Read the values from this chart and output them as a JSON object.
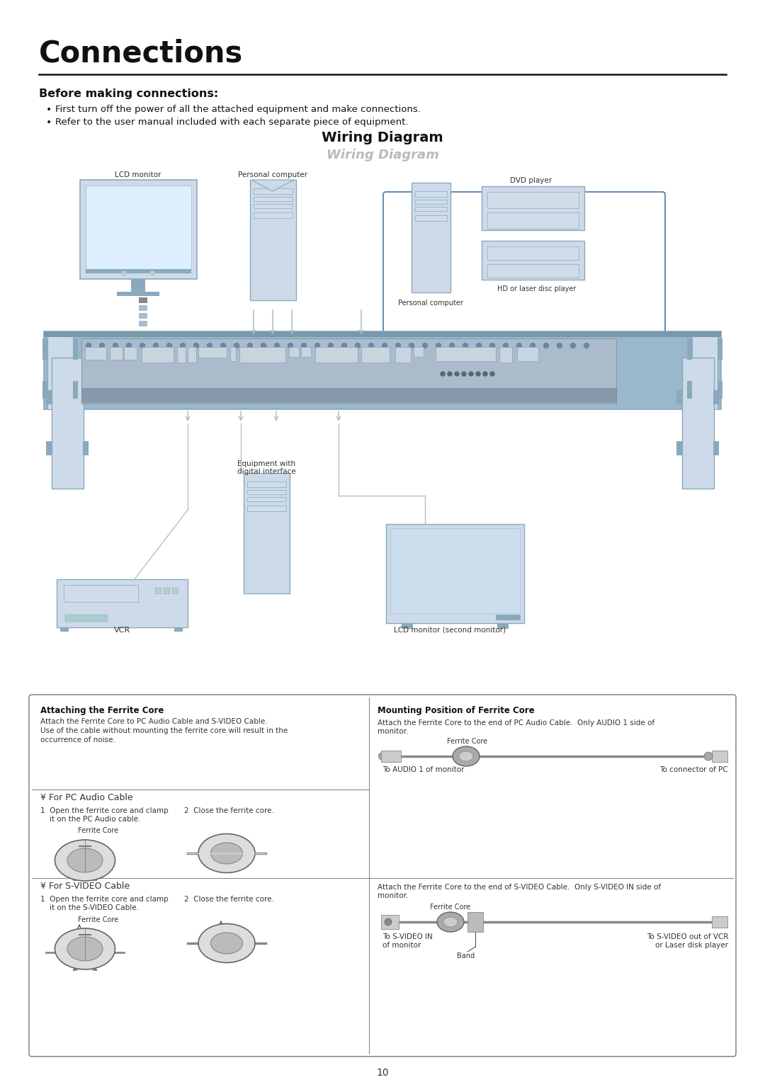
{
  "page_title": "Connections",
  "section_title": "Before making connections:",
  "bullet1": "First turn off the power of all the attached equipment and make connections.",
  "bullet2": "Refer to the user manual included with each separate piece of equipment.",
  "wiring_title_black": "Wiring Diagram",
  "wiring_title_gray": "Wiring Diagram",
  "page_number": "10",
  "bg_color": "#ffffff",
  "lb": "#b8ccd8",
  "lb2": "#ccdaea",
  "lb3": "#8aaabb",
  "lb4": "#9ab8cc",
  "dark": "#333333",
  "mid": "#888888",
  "box_border": "#4477aa",
  "ferrite_left_title": "Attaching the Ferrite Core",
  "ferrite_right_title": "Mounting Position of Ferrite Core",
  "ferrite_left_body1": "Attach the Ferrite Core to PC Audio Cable and S-VIDEO Cable.",
  "ferrite_left_body2": "Use of the cable without mounting the ferrite core will result in the",
  "ferrite_left_body3": "occurrence of noise.",
  "ferrite_pc_title": "¥ For PC Audio Cable",
  "ferrite_sv_title": "¥ For S-VIDEO Cable",
  "step1_pc_a": "1  Open the ferrite core and clamp",
  "step1_pc_b": "    it on the PC Audio cable.",
  "step2_pc": "2  Close the ferrite core.",
  "step1_sv_a": "1  Open the ferrite core and clamp",
  "step1_sv_b": "    it on the S-VIDEO Cable.",
  "step2_sv": "2  Close the ferrite core.",
  "ferrite_core_label": "Ferrite Core",
  "mount_pc_line1": "Attach the Ferrite Core to the end of PC Audio Cable.  Only AUDIO 1 side of",
  "mount_pc_line2": "monitor.",
  "mount_sv_line1": "Attach the Ferrite Core to the end of S-VIDEO Cable.  Only S-VIDEO IN side of",
  "mount_sv_line2": "monitor.",
  "to_audio1": "To AUDIO 1 of monitor",
  "to_connector_pc": "To connector of PC",
  "to_svideo_in": "To S-VIDEO IN",
  "of_monitor": "of monitor",
  "to_svideo_out1": "To S-VIDEO out of VCR",
  "to_svideo_out2": "or Laser disk player",
  "band_label": "Band",
  "label_lcd": "LCD monitor",
  "label_pc_top": "Personal computer",
  "label_dvd": "DVD player",
  "label_pc_box": "Personal computer",
  "label_hd": "HD or laser disc player",
  "label_vcr": "VCR",
  "label_equip": "Equipment with",
  "label_equip2": "digital interface",
  "label_lcd2": "LCD monitor (second monitor)"
}
